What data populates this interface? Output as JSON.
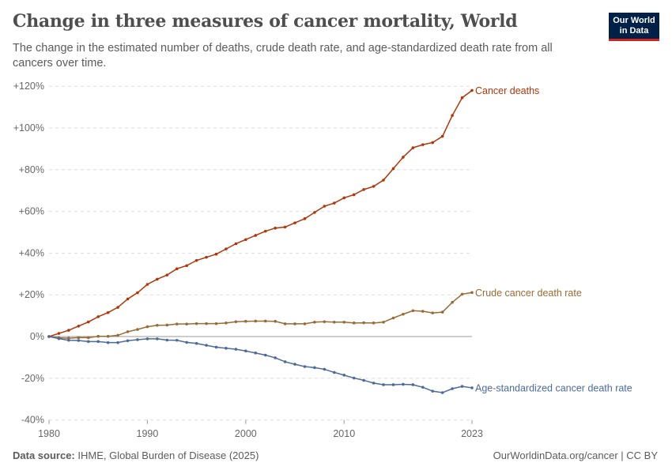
{
  "header": {
    "title": "Change in three measures of cancer mortality, World",
    "subtitle": "The change in the estimated number of deaths, crude death rate, and age-standardized death rate from all cancers over time.",
    "logo": "Our World in Data"
  },
  "footer": {
    "source_label": "Data source:",
    "source": "IHME, Global Burden of Disease (2025)",
    "credit": "OurWorldinData.org/cancer | CC BY"
  },
  "chart_data": {
    "type": "line",
    "title": "Change in three measures of cancer mortality, World",
    "xlim": [
      1980,
      2023
    ],
    "ylim": [
      -40,
      120
    ],
    "x_ticks": [
      "1980",
      "1990",
      "2000",
      "2010",
      "2023"
    ],
    "y_ticks": [
      "-40%",
      "-20%",
      "0%",
      "+20%",
      "+40%",
      "+60%",
      "+80%",
      "+100%",
      "+120%"
    ],
    "y_tick_values": [
      -40,
      -20,
      0,
      20,
      40,
      60,
      80,
      100,
      120
    ],
    "grid": "horizontal dashed",
    "legend": "inline-right",
    "x": [
      1980,
      1981,
      1982,
      1983,
      1984,
      1985,
      1986,
      1987,
      1988,
      1989,
      1990,
      1991,
      1992,
      1993,
      1994,
      1995,
      1996,
      1997,
      1998,
      1999,
      2000,
      2001,
      2002,
      2003,
      2004,
      2005,
      2006,
      2007,
      2008,
      2009,
      2010,
      2011,
      2012,
      2013,
      2014,
      2015,
      2016,
      2017,
      2018,
      2019,
      2020,
      2021,
      2022,
      2023
    ],
    "series": [
      {
        "name": "Cancer deaths",
        "color": "#b13507",
        "values": [
          0,
          1.5,
          3,
          5,
          7,
          9.5,
          11.5,
          14,
          18,
          21,
          25,
          27.5,
          29.5,
          32.5,
          34,
          36.5,
          38,
          39.5,
          42,
          44.5,
          46.5,
          48.5,
          50.5,
          52,
          52.5,
          54.5,
          56.5,
          59.5,
          62.5,
          64,
          66.5,
          68,
          70.5,
          72,
          75,
          80.5,
          86,
          90.5,
          92,
          93,
          96,
          106,
          114.5,
          118
        ]
      },
      {
        "name": "Crude cancer death rate",
        "color": "#9a6a35",
        "values": [
          0,
          -0.6,
          -0.8,
          -0.5,
          -0.5,
          0.1,
          0.1,
          0.6,
          2.3,
          3.4,
          4.7,
          5.4,
          5.5,
          6,
          6,
          6.2,
          6.2,
          6.2,
          6.5,
          7.1,
          7.3,
          7.4,
          7.4,
          7.3,
          6.1,
          6.1,
          6.1,
          6.9,
          7.1,
          6.9,
          6.9,
          6.5,
          6.6,
          6.5,
          6.9,
          8.9,
          10.7,
          12.4,
          12.1,
          11.3,
          11.7,
          16.4,
          20.3,
          21.1
        ]
      },
      {
        "name": "Age-standardized cancer death rate",
        "color": "#4c6a9c",
        "values": [
          0,
          -1,
          -1.8,
          -1.9,
          -2.4,
          -2.4,
          -2.9,
          -2.9,
          -2,
          -1.5,
          -1.1,
          -1.1,
          -1.7,
          -1.8,
          -2.8,
          -3.3,
          -4.2,
          -5.1,
          -5.6,
          -6.1,
          -6.9,
          -7.9,
          -8.9,
          -10.2,
          -12.1,
          -13.3,
          -14.4,
          -14.9,
          -15.7,
          -17.2,
          -18.5,
          -19.9,
          -21,
          -22.3,
          -23.1,
          -23.1,
          -22.9,
          -23.1,
          -24.3,
          -26.2,
          -26.9,
          -25,
          -23.9,
          -24.6
        ]
      }
    ]
  }
}
